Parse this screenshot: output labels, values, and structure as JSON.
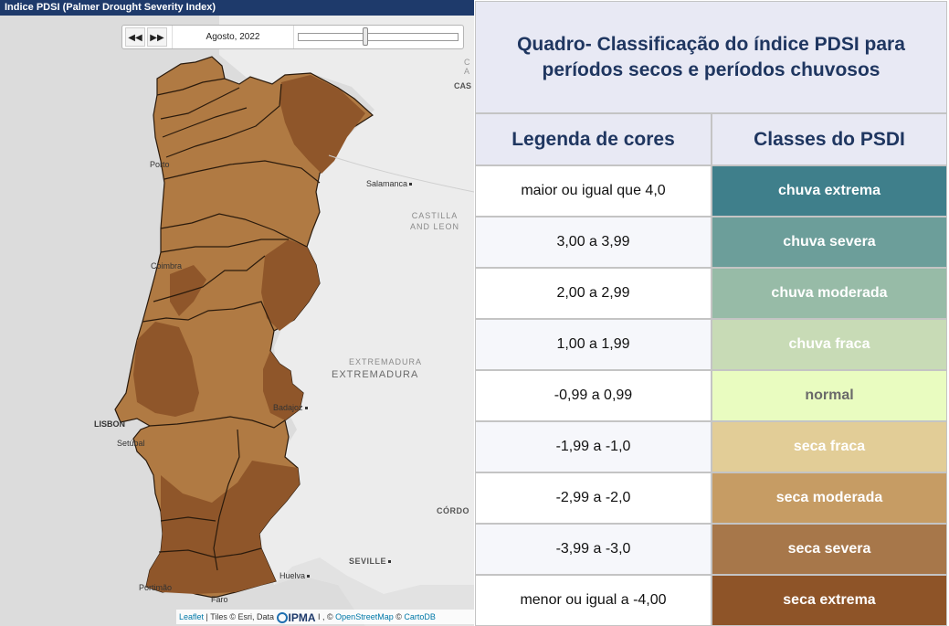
{
  "map": {
    "title": "Indice PDSI (Palmer Drought Severity Index)",
    "timeline": {
      "rewind_icon": "double-chevron-left-icon",
      "forward_icon": "double-chevron-right-icon",
      "date": "Agosto, 2022",
      "slider_position": 0.42
    },
    "places": {
      "porto": "Porto",
      "coimbra": "Coimbra",
      "lisbon": "LISBON",
      "setubal": "Setúbal",
      "portimao": "Portimão",
      "faro": "Faro",
      "huelva": "Huelva",
      "seville": "SEVILLE",
      "badajoz": "Badajoz",
      "salamanca": "Salamanca",
      "cordoba": "CÓRDO",
      "cas": "CAS",
      "cas_a": "A",
      "cas_c": "C"
    },
    "regions": {
      "castilla": "CASTILLA",
      "leon": "AND LEON",
      "extremadura_small": "EXTREMADURA",
      "extremadura": "EXTREMADURA"
    },
    "attribution": {
      "leaflet": "Leaflet",
      "tiles": " | Tiles © Esri, Data ",
      "ipma": "IPMA",
      "mid": " I , © ",
      "osm": "OpenStreetMap",
      "sep": " © ",
      "carto": "CartoDB"
    },
    "colors": {
      "sea": "#dcdcdc",
      "land_spain": "#ececec",
      "drought_severe": "#b07a43",
      "drought_extreme": "#8f562a"
    }
  },
  "table": {
    "title": "Quadro-  Classificação do índice PDSI para períodos secos e períodos chuvosos",
    "header_left": "Legenda de cores",
    "header_right": "Classes do PSDI",
    "rows": [
      {
        "range": "maior ou igual que 4,0",
        "class": "chuva extrema",
        "color": "#3f7f8b",
        "text_color": "#ffffff"
      },
      {
        "range": "3,00 a 3,99",
        "class": "chuva severa",
        "color": "#6c9e9a",
        "text_color": "#ffffff"
      },
      {
        "range": "2,00 a 2,99",
        "class": "chuva moderada",
        "color": "#97bba7",
        "text_color": "#ffffff"
      },
      {
        "range": "1,00 a 1,99",
        "class": "chuva fraca",
        "color": "#c8dbb6",
        "text_color": "#ffffff"
      },
      {
        "range": "-0,99 a 0,99",
        "class": "normal",
        "color": "#e9fcc0",
        "text_color": "#6a6a6a"
      },
      {
        "range": "-1,99 a -1,0",
        "class": "seca fraca",
        "color": "#e2cd97",
        "text_color": "#ffffff"
      },
      {
        "range": "-2,99 a -2,0",
        "class": "seca moderada",
        "color": "#c69c64",
        "text_color": "#ffffff"
      },
      {
        "range": "-3,99 a -3,0",
        "class": "seca severa",
        "color": "#a7774a",
        "text_color": "#ffffff"
      },
      {
        "range": "menor ou igual a -4,00",
        "class": "seca extrema",
        "color": "#8e5428",
        "text_color": "#ffffff"
      }
    ]
  }
}
